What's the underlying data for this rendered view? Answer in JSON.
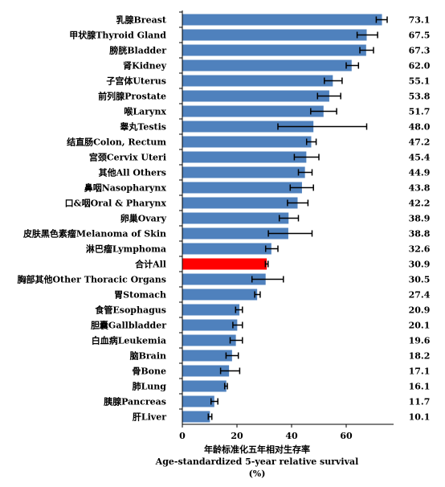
{
  "chart_data": {
    "type": "bar",
    "orientation": "horizontal",
    "categories": [
      "乳腺Breast",
      "甲状腺Thyroid Gland",
      "膀胱Bladder",
      "肾Kidney",
      "子宫体Uterus",
      "前列腺Prostate",
      "喉Larynx",
      "睾丸Testis",
      "结直肠Colon, Rectum",
      "宫颈Cervix Uteri",
      "其他All Others",
      "鼻咽Nasopharynx",
      "口&咽Oral & Pharynx",
      "卵巢Ovary",
      "皮肤黑色素瘤Melanoma of Skin",
      "淋巴瘤Lymphoma",
      "合计All",
      "胸部其他Other Thoracic Organs",
      "胃Stomach",
      "食管Esophagus",
      "胆囊Gallbladder",
      "白血病Leukemia",
      "脑Brain",
      "骨Bone",
      "肺Lung",
      "胰腺Pancreas",
      "肝Liver"
    ],
    "values": [
      73.1,
      67.5,
      67.3,
      62.0,
      55.1,
      53.8,
      51.7,
      48.0,
      47.2,
      45.4,
      44.9,
      43.8,
      42.2,
      38.9,
      38.8,
      32.6,
      30.9,
      30.5,
      27.4,
      20.9,
      20.1,
      19.6,
      18.2,
      17.1,
      16.1,
      11.7,
      10.1
    ],
    "value_labels": [
      "73.1",
      "67.5",
      "67.3",
      "62.0",
      "55.1",
      "53.8",
      "51.7",
      "48.0",
      "47.2",
      "45.4",
      "44.9",
      "43.8",
      "42.2",
      "38.9",
      "38.8",
      "32.6",
      "30.9",
      "30.5",
      "27.4",
      "20.9",
      "20.1",
      "19.6",
      "18.2",
      "17.1",
      "16.1",
      "11.7",
      "10.1"
    ],
    "error_low": [
      71.0,
      64.0,
      65.0,
      60.0,
      52.0,
      49.5,
      47.0,
      35.0,
      45.5,
      41.0,
      42.5,
      39.5,
      38.5,
      35.5,
      31.5,
      30.5,
      30.4,
      25.5,
      26.5,
      19.5,
      18.5,
      17.5,
      16.0,
      14.0,
      15.5,
      10.5,
      9.5
    ],
    "error_high": [
      75.0,
      71.5,
      70.0,
      64.5,
      58.5,
      58.0,
      56.5,
      67.5,
      49.0,
      50.0,
      47.5,
      48.0,
      46.0,
      42.5,
      47.5,
      35.0,
      31.4,
      37.0,
      28.5,
      22.0,
      22.0,
      22.0,
      20.5,
      21.0,
      16.5,
      13.0,
      10.8
    ],
    "highlight_index": 16,
    "xticks": [
      0,
      20,
      40,
      60
    ],
    "xlim": [
      0,
      75
    ],
    "xlabel": [
      "年龄标准化五年相对生存率",
      "Age-standardized 5-year relative survival",
      "(%)"
    ],
    "colors": {
      "bar": "#4F81BD",
      "highlight": "#FF0000",
      "error": "#000000",
      "axis": "#000000"
    },
    "grid": false
  }
}
